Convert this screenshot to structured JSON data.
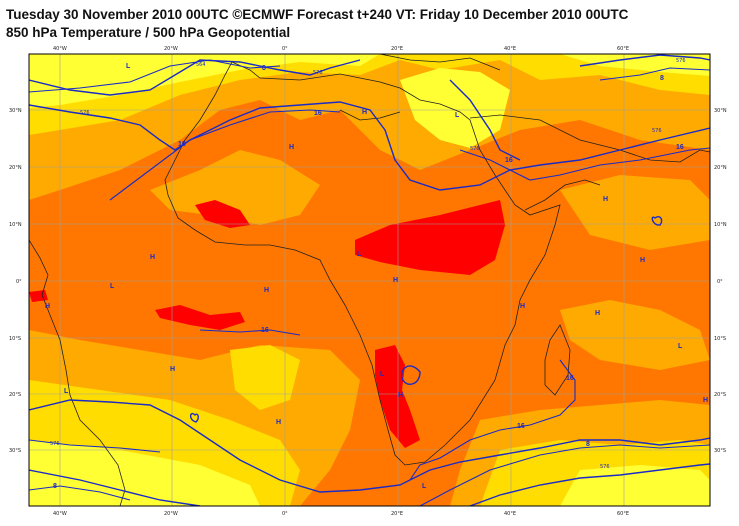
{
  "header": {
    "title_line1": "Tuesday 30 November 2010 00UTC ©ECMWF Forecast t+240 VT: Friday 10 December 2010 00UTC",
    "title_line2": "850 hPa Temperature / 500 hPa Geopotential"
  },
  "axes": {
    "lon_top": [
      "40°W",
      "20°W",
      "0°",
      "20°E",
      "40°E",
      "60°E"
    ],
    "lon_bottom": [
      "40°W",
      "20°W",
      "0°",
      "20°E",
      "40°E",
      "60°E"
    ],
    "lat_left": [
      "30°N",
      "20°N",
      "10°N",
      "0°",
      "10°S",
      "20°S",
      "30°S"
    ],
    "lat_right": [
      "30°N",
      "20°N",
      "10°N",
      "0°",
      "10°S",
      "20°S",
      "30°S"
    ]
  },
  "colors": {
    "yellow_light": "#ffff33",
    "yellow": "#ffdd00",
    "orange_light": "#ffaa00",
    "orange": "#ff7700",
    "red": "#ff0000",
    "contour": "#1a2bc8",
    "coast": "#222222"
  },
  "geopotential_labels": [
    "564",
    "576",
    "576",
    "576",
    "576",
    "576",
    "576",
    "576"
  ],
  "temperature_labels": [
    "8",
    "8",
    "8",
    "8",
    "16",
    "16",
    "16",
    "16",
    "16",
    "16",
    "16"
  ],
  "pressure_centers": [
    "L",
    "L",
    "L",
    "L",
    "L",
    "L",
    "L",
    "L",
    "H",
    "H",
    "H",
    "H",
    "H",
    "H",
    "H",
    "H",
    "H",
    "H",
    "H",
    "H",
    "H",
    "H"
  ]
}
